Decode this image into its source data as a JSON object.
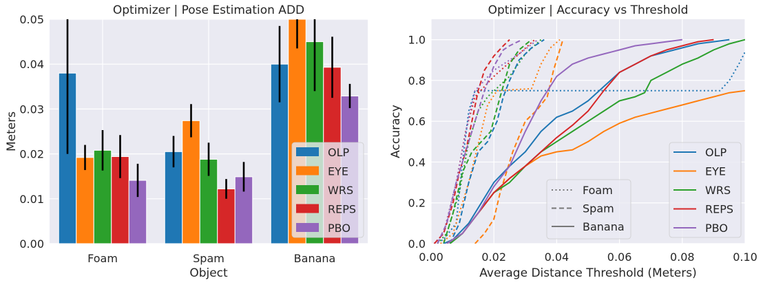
{
  "chart_data": [
    {
      "type": "bar",
      "title": "Optimizer | Pose Estimation ADD",
      "xlabel": "Object",
      "ylabel": "Meters",
      "ylim": [
        0,
        0.05
      ],
      "yticks": [
        "0.00",
        "0.01",
        "0.02",
        "0.03",
        "0.04",
        "0.05"
      ],
      "categories": [
        "Foam",
        "Spam",
        "Banana"
      ],
      "series": [
        {
          "name": "OLP",
          "color": "#1f77b4",
          "values": [
            0.038,
            0.0205,
            0.04
          ],
          "errors": [
            0.018,
            0.0035,
            0.0085
          ]
        },
        {
          "name": "EYE",
          "color": "#ff7f0e",
          "values": [
            0.0192,
            0.0274,
            0.0503
          ],
          "errors": [
            0.0028,
            0.0037,
            0.0068
          ]
        },
        {
          "name": "WRS",
          "color": "#2ca02c",
          "values": [
            0.0208,
            0.0188,
            0.045
          ],
          "errors": [
            0.0045,
            0.0037,
            0.011
          ]
        },
        {
          "name": "REPS",
          "color": "#d62728",
          "values": [
            0.0194,
            0.0122,
            0.0393
          ],
          "errors": [
            0.0048,
            0.0022,
            0.0068
          ]
        },
        {
          "name": "PBO",
          "color": "#9467bd",
          "values": [
            0.0141,
            0.0149,
            0.0329
          ],
          "errors": [
            0.0037,
            0.0033,
            0.0027
          ]
        }
      ],
      "legend_position": "lower-right"
    },
    {
      "type": "line",
      "title": "Optimizer | Accuracy vs Threshold",
      "xlabel": "Average Distance Threshold (Meters)",
      "ylabel": "Accuracy",
      "xlim": [
        0,
        0.1
      ],
      "ylim": [
        0,
        1.1
      ],
      "xticks": [
        "0.00",
        "0.02",
        "0.04",
        "0.06",
        "0.08",
        "0.10"
      ],
      "yticks": [
        "0.0",
        "0.2",
        "0.4",
        "0.6",
        "0.8",
        "1.0"
      ],
      "methods": [
        {
          "name": "OLP",
          "color": "#1f77b4"
        },
        {
          "name": "EYE",
          "color": "#ff7f0e"
        },
        {
          "name": "WRS",
          "color": "#2ca02c"
        },
        {
          "name": "REPS",
          "color": "#d62728"
        },
        {
          "name": "PBO",
          "color": "#9467bd"
        }
      ],
      "objects": [
        {
          "name": "Foam",
          "dash": "dotted"
        },
        {
          "name": "Spam",
          "dash": "dashed"
        },
        {
          "name": "Banana",
          "dash": "solid"
        }
      ],
      "curves": {
        "Foam": {
          "OLP": [
            [
              0.001,
              0
            ],
            [
              0.004,
              0.02
            ],
            [
              0.008,
              0.1
            ],
            [
              0.01,
              0.4
            ],
            [
              0.012,
              0.65
            ],
            [
              0.014,
              0.75
            ],
            [
              0.02,
              0.75
            ],
            [
              0.06,
              0.75
            ],
            [
              0.092,
              0.75
            ],
            [
              0.095,
              0.8
            ],
            [
              0.098,
              0.88
            ],
            [
              0.1,
              0.94
            ]
          ],
          "EYE": [
            [
              0.003,
              0
            ],
            [
              0.007,
              0.05
            ],
            [
              0.012,
              0.3
            ],
            [
              0.016,
              0.55
            ],
            [
              0.018,
              0.68
            ],
            [
              0.021,
              0.75
            ],
            [
              0.032,
              0.76
            ],
            [
              0.035,
              0.88
            ],
            [
              0.038,
              0.96
            ],
            [
              0.041,
              1.0
            ]
          ],
          "WRS": [
            [
              0.002,
              0
            ],
            [
              0.005,
              0.05
            ],
            [
              0.009,
              0.25
            ],
            [
              0.012,
              0.5
            ],
            [
              0.015,
              0.65
            ],
            [
              0.018,
              0.72
            ],
            [
              0.025,
              0.82
            ],
            [
              0.03,
              0.93
            ],
            [
              0.035,
              1.0
            ]
          ],
          "REPS": [
            [
              0.001,
              0
            ],
            [
              0.004,
              0.05
            ],
            [
              0.008,
              0.3
            ],
            [
              0.011,
              0.55
            ],
            [
              0.014,
              0.72
            ],
            [
              0.02,
              0.82
            ],
            [
              0.028,
              0.93
            ],
            [
              0.033,
              1.0
            ]
          ],
          "PBO": [
            [
              0.001,
              0
            ],
            [
              0.004,
              0.05
            ],
            [
              0.008,
              0.3
            ],
            [
              0.012,
              0.62
            ],
            [
              0.014,
              0.75
            ],
            [
              0.02,
              0.85
            ],
            [
              0.028,
              0.93
            ],
            [
              0.034,
              1.0
            ]
          ]
        },
        "Spam": {
          "OLP": [
            [
              0.006,
              0
            ],
            [
              0.009,
              0.1
            ],
            [
              0.012,
              0.3
            ],
            [
              0.015,
              0.45
            ],
            [
              0.018,
              0.5
            ],
            [
              0.021,
              0.6
            ],
            [
              0.023,
              0.72
            ],
            [
              0.025,
              0.8
            ],
            [
              0.028,
              0.9
            ],
            [
              0.032,
              0.96
            ],
            [
              0.036,
              1.0
            ]
          ],
          "EYE": [
            [
              0.014,
              0
            ],
            [
              0.017,
              0.05
            ],
            [
              0.02,
              0.12
            ],
            [
              0.022,
              0.25
            ],
            [
              0.026,
              0.45
            ],
            [
              0.03,
              0.6
            ],
            [
              0.034,
              0.66
            ],
            [
              0.037,
              0.72
            ],
            [
              0.039,
              0.85
            ],
            [
              0.042,
              1.0
            ]
          ],
          "WRS": [
            [
              0.004,
              0
            ],
            [
              0.007,
              0.15
            ],
            [
              0.01,
              0.35
            ],
            [
              0.013,
              0.45
            ],
            [
              0.016,
              0.5
            ],
            [
              0.019,
              0.55
            ],
            [
              0.022,
              0.72
            ],
            [
              0.025,
              0.88
            ],
            [
              0.028,
              0.95
            ],
            [
              0.032,
              1.0
            ]
          ],
          "REPS": [
            [
              0.001,
              0
            ],
            [
              0.004,
              0.05
            ],
            [
              0.007,
              0.2
            ],
            [
              0.009,
              0.35
            ],
            [
              0.011,
              0.45
            ],
            [
              0.013,
              0.6
            ],
            [
              0.015,
              0.75
            ],
            [
              0.017,
              0.85
            ],
            [
              0.02,
              0.92
            ],
            [
              0.023,
              0.97
            ],
            [
              0.025,
              1.0
            ]
          ],
          "PBO": [
            [
              0.002,
              0
            ],
            [
              0.005,
              0.1
            ],
            [
              0.008,
              0.3
            ],
            [
              0.011,
              0.45
            ],
            [
              0.014,
              0.6
            ],
            [
              0.017,
              0.75
            ],
            [
              0.02,
              0.87
            ],
            [
              0.023,
              0.95
            ],
            [
              0.025,
              0.97
            ],
            [
              0.029,
              1.0
            ]
          ]
        },
        "Banana": {
          "OLP": [
            [
              0.004,
              0
            ],
            [
              0.007,
              0.02
            ],
            [
              0.012,
              0.1
            ],
            [
              0.016,
              0.2
            ],
            [
              0.02,
              0.3
            ],
            [
              0.025,
              0.38
            ],
            [
              0.03,
              0.45
            ],
            [
              0.035,
              0.55
            ],
            [
              0.04,
              0.62
            ],
            [
              0.045,
              0.65
            ],
            [
              0.05,
              0.7
            ],
            [
              0.055,
              0.77
            ],
            [
              0.06,
              0.84
            ],
            [
              0.065,
              0.88
            ],
            [
              0.07,
              0.92
            ],
            [
              0.075,
              0.94
            ],
            [
              0.08,
              0.96
            ],
            [
              0.085,
              0.98
            ],
            [
              0.09,
              0.99
            ],
            [
              0.095,
              1.0
            ]
          ],
          "EYE": [
            [
              0.005,
              0
            ],
            [
              0.01,
              0.05
            ],
            [
              0.015,
              0.15
            ],
            [
              0.02,
              0.25
            ],
            [
              0.025,
              0.32
            ],
            [
              0.03,
              0.38
            ],
            [
              0.035,
              0.43
            ],
            [
              0.04,
              0.45
            ],
            [
              0.045,
              0.46
            ],
            [
              0.05,
              0.5
            ],
            [
              0.055,
              0.55
            ],
            [
              0.06,
              0.59
            ],
            [
              0.065,
              0.62
            ],
            [
              0.07,
              0.64
            ],
            [
              0.075,
              0.66
            ],
            [
              0.08,
              0.68
            ],
            [
              0.085,
              0.7
            ],
            [
              0.09,
              0.72
            ],
            [
              0.095,
              0.74
            ],
            [
              0.1,
              0.75
            ]
          ],
          "WRS": [
            [
              0.006,
              0
            ],
            [
              0.01,
              0.05
            ],
            [
              0.015,
              0.15
            ],
            [
              0.02,
              0.25
            ],
            [
              0.025,
              0.3
            ],
            [
              0.03,
              0.38
            ],
            [
              0.035,
              0.45
            ],
            [
              0.04,
              0.5
            ],
            [
              0.045,
              0.55
            ],
            [
              0.05,
              0.6
            ],
            [
              0.055,
              0.65
            ],
            [
              0.06,
              0.7
            ],
            [
              0.065,
              0.72
            ],
            [
              0.068,
              0.74
            ],
            [
              0.07,
              0.8
            ],
            [
              0.075,
              0.84
            ],
            [
              0.08,
              0.88
            ],
            [
              0.085,
              0.91
            ],
            [
              0.09,
              0.95
            ],
            [
              0.095,
              0.98
            ],
            [
              0.1,
              1.0
            ]
          ],
          "REPS": [
            [
              0.005,
              0
            ],
            [
              0.01,
              0.05
            ],
            [
              0.015,
              0.15
            ],
            [
              0.02,
              0.25
            ],
            [
              0.025,
              0.32
            ],
            [
              0.03,
              0.38
            ],
            [
              0.035,
              0.45
            ],
            [
              0.04,
              0.52
            ],
            [
              0.045,
              0.58
            ],
            [
              0.05,
              0.65
            ],
            [
              0.055,
              0.75
            ],
            [
              0.06,
              0.84
            ],
            [
              0.065,
              0.88
            ],
            [
              0.07,
              0.92
            ],
            [
              0.075,
              0.95
            ],
            [
              0.08,
              0.97
            ],
            [
              0.085,
              0.99
            ],
            [
              0.09,
              1.0
            ]
          ],
          "PBO": [
            [
              0.005,
              0
            ],
            [
              0.01,
              0.05
            ],
            [
              0.015,
              0.15
            ],
            [
              0.02,
              0.28
            ],
            [
              0.025,
              0.38
            ],
            [
              0.03,
              0.55
            ],
            [
              0.035,
              0.7
            ],
            [
              0.04,
              0.82
            ],
            [
              0.045,
              0.88
            ],
            [
              0.05,
              0.91
            ],
            [
              0.055,
              0.93
            ],
            [
              0.06,
              0.95
            ],
            [
              0.065,
              0.97
            ],
            [
              0.07,
              0.98
            ],
            [
              0.075,
              0.99
            ],
            [
              0.08,
              1.0
            ]
          ]
        }
      },
      "legend_position": "lower-right"
    }
  ]
}
